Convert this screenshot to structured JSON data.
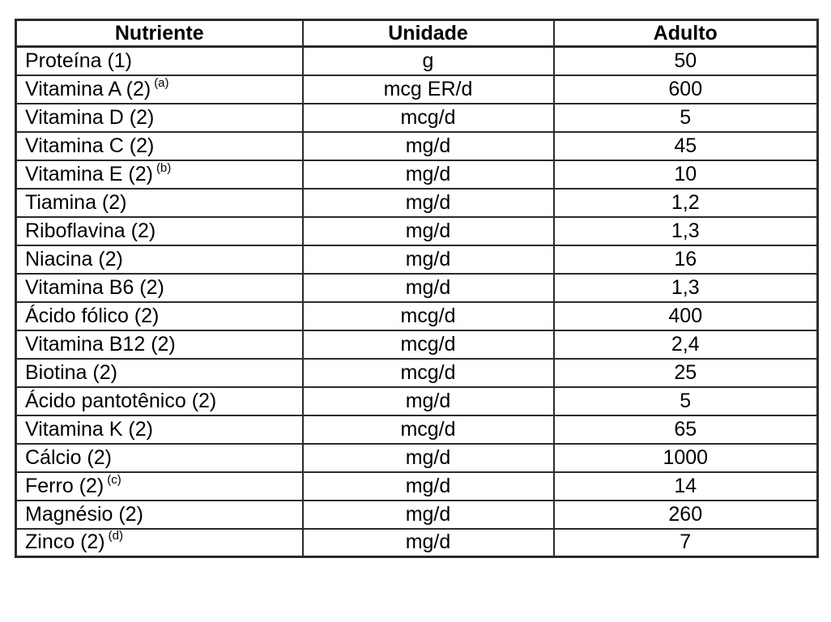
{
  "page": {
    "background": "#ffffff",
    "text_color": "#000000",
    "border_color": "#2b2b2b"
  },
  "table": {
    "headers": [
      "Nutriente",
      "Unidade",
      "Adulto"
    ],
    "rows": [
      {
        "nutriente": "Proteína (1)",
        "sup": "",
        "unidade": "g",
        "adulto": "50"
      },
      {
        "nutriente": "Vitamina A (2)",
        "sup": "(a)",
        "unidade": "mcg ER/d",
        "adulto": "600"
      },
      {
        "nutriente": "Vitamina D (2)",
        "sup": "",
        "unidade": "mcg/d",
        "adulto": "5"
      },
      {
        "nutriente": "Vitamina C (2)",
        "sup": "",
        "unidade": "mg/d",
        "adulto": "45"
      },
      {
        "nutriente": "Vitamina E (2)",
        "sup": "(b)",
        "unidade": "mg/d",
        "adulto": "10"
      },
      {
        "nutriente": "Tiamina (2)",
        "sup": "",
        "unidade": "mg/d",
        "adulto": "1,2"
      },
      {
        "nutriente": "Riboflavina (2)",
        "sup": "",
        "unidade": "mg/d",
        "adulto": "1,3"
      },
      {
        "nutriente": "Niacina (2)",
        "sup": "",
        "unidade": "mg/d",
        "adulto": "16"
      },
      {
        "nutriente": "Vitamina B6 (2)",
        "sup": "",
        "unidade": "mg/d",
        "adulto": "1,3"
      },
      {
        "nutriente": "Ácido fólico (2)",
        "sup": "",
        "unidade": "mcg/d",
        "adulto": "400"
      },
      {
        "nutriente": "Vitamina B12 (2)",
        "sup": "",
        "unidade": "mcg/d",
        "adulto": "2,4"
      },
      {
        "nutriente": "Biotina (2)",
        "sup": "",
        "unidade": "mcg/d",
        "adulto": "25"
      },
      {
        "nutriente": "Ácido pantotênico (2)",
        "sup": "",
        "unidade": "mg/d",
        "adulto": "5"
      },
      {
        "nutriente": "Vitamina K (2)",
        "sup": "",
        "unidade": "mcg/d",
        "adulto": "65"
      },
      {
        "nutriente": "Cálcio (2)",
        "sup": "",
        "unidade": "mg/d",
        "adulto": "1000"
      },
      {
        "nutriente": "Ferro (2)",
        "sup": "(c)",
        "unidade": "mg/d",
        "adulto": "14"
      },
      {
        "nutriente": "Magnésio (2)",
        "sup": "",
        "unidade": "mg/d",
        "adulto": "260"
      },
      {
        "nutriente": "Zinco (2)",
        "sup": "(d)",
        "unidade": "mg/d",
        "adulto": "7"
      }
    ]
  }
}
